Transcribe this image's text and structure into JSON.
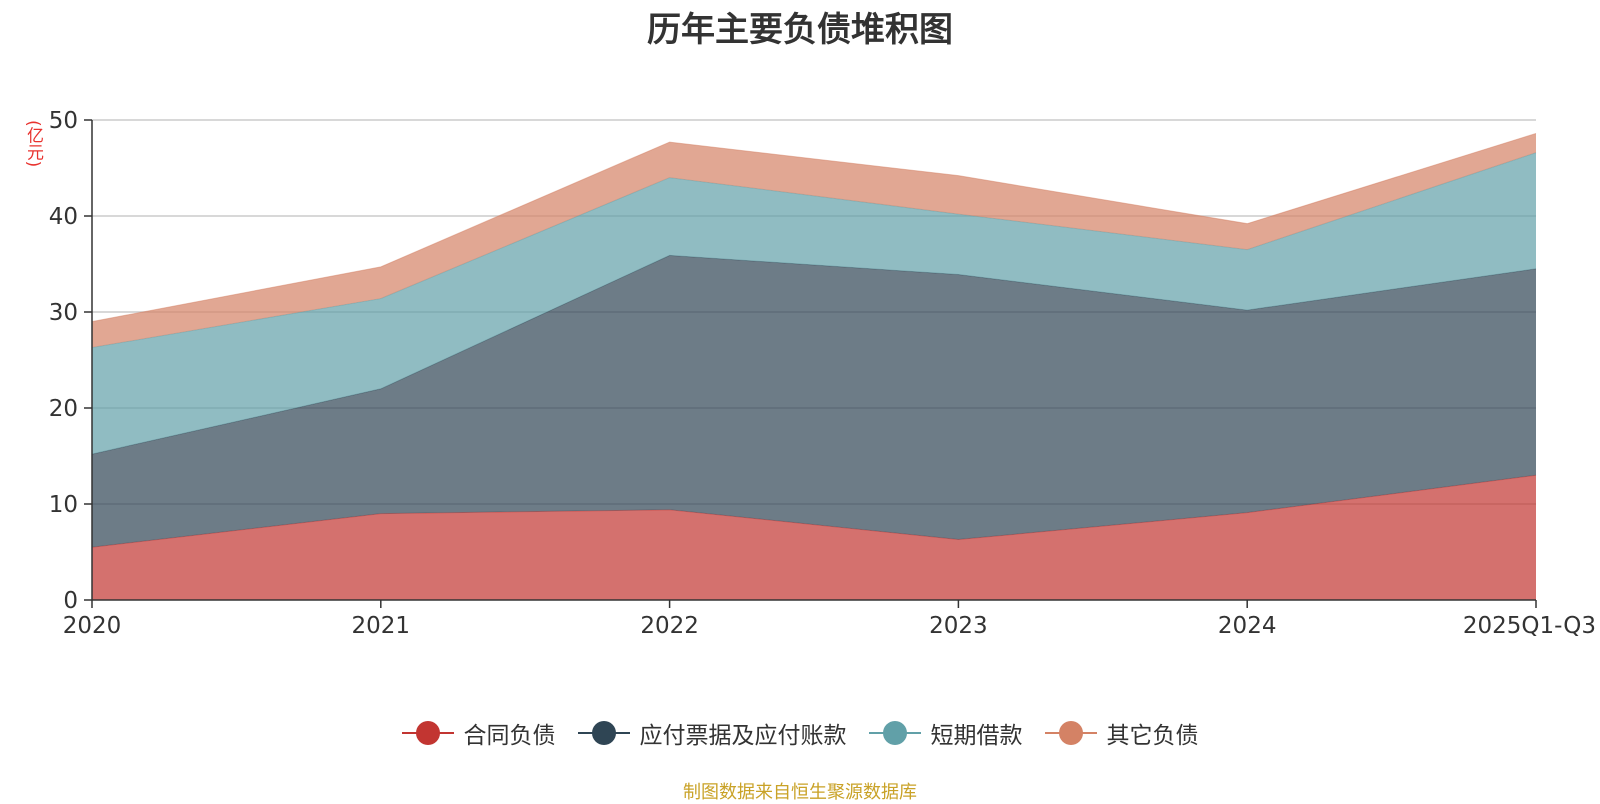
{
  "chart_data": {
    "type": "area",
    "stacked": true,
    "title": "历年主要负债堆积图",
    "unit_label": "(亿元)",
    "x": [
      "2020",
      "2021",
      "2022",
      "2023",
      "2024",
      "2025Q1-Q3"
    ],
    "ylim": [
      0,
      50
    ],
    "yticks": [
      0,
      10,
      20,
      30,
      40,
      50
    ],
    "grid": true,
    "legend_position": "bottom-center",
    "series": [
      {
        "name": "合同负债",
        "values": [
          5.5,
          9.0,
          9.4,
          6.3,
          9.1,
          13.0
        ],
        "color": "#c23531"
      },
      {
        "name": "应付票据及应付账款",
        "values": [
          9.7,
          13.0,
          26.5,
          27.6,
          21.1,
          21.5
        ],
        "color": "#2f4554"
      },
      {
        "name": "短期借款",
        "values": [
          11.1,
          9.4,
          8.1,
          6.3,
          6.3,
          12.1
        ],
        "color": "#61a0a8"
      },
      {
        "name": "其它负债",
        "values": [
          2.7,
          3.3,
          3.7,
          4.0,
          2.7,
          2.0
        ],
        "color": "#d48265"
      }
    ]
  },
  "source_note": "制图数据来自恒生聚源数据库"
}
